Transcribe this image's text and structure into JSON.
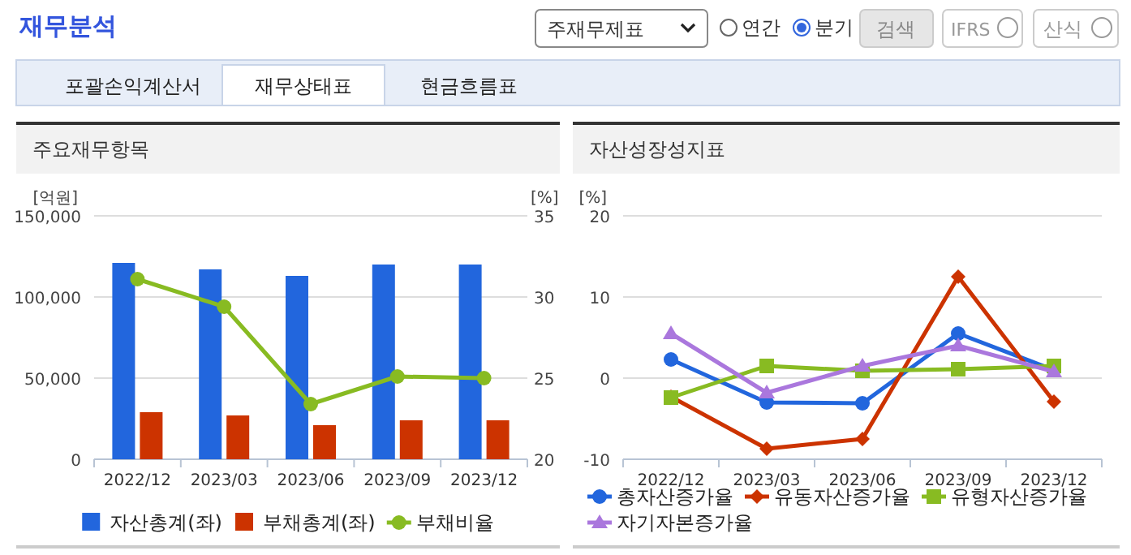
{
  "chart_data": [
    {
      "type": "bar",
      "title": "주요재무항목",
      "ylabel": "[억원]",
      "y2label": "[%]",
      "annotations": [
        "재무분석",
        "주재무제표",
        "연간",
        "분기",
        "검색",
        "IFRS",
        "산식",
        "포괄손익계산서",
        "재무상태표",
        "현금흐름표"
      ],
      "categories": [
        "2022/12",
        "2023/03",
        "2023/06",
        "2023/09",
        "2023/12"
      ],
      "series": [
        {
          "name": "자산총계(좌)",
          "color": "#2266dd",
          "values": [
            121000,
            117000,
            113000,
            120000,
            120000
          ]
        },
        {
          "name": "부채총계(좌)",
          "color": "#cc3300",
          "values": [
            29000,
            27000,
            21000,
            24000,
            24000
          ]
        },
        {
          "name": "부채비율",
          "type": "line",
          "axis": "y2",
          "marker": "circle",
          "color": "#88bb22",
          "values": [
            31.1,
            29.4,
            23.4,
            25.1,
            25.0
          ]
        }
      ],
      "ylim": [
        0,
        150000
      ],
      "yticks": [
        0,
        {
          "value": 50000,
          "label": "50,000"
        },
        {
          "value": 100000,
          "label": "100,000"
        },
        {
          "value": 150000,
          "label": "150,000"
        }
      ],
      "y2lim": [
        20,
        35
      ],
      "y2ticks": [
        20,
        25,
        30,
        35
      ],
      "grid": "y",
      "legend": "bottom"
    },
    {
      "type": "line",
      "title": "자산성장성지표",
      "ylabel": "[%]",
      "categories": [
        "2022/12",
        "2023/03",
        "2023/06",
        "2023/09",
        "2023/12"
      ],
      "series": [
        {
          "name": "총자산증가율",
          "marker": "circle",
          "color": "#2266dd",
          "values": [
            2.3,
            -3.0,
            -3.1,
            5.5,
            1.0
          ]
        },
        {
          "name": "유동자산증가율",
          "marker": "diamond",
          "color": "#cc3300",
          "values": [
            -2.3,
            -8.7,
            -7.5,
            12.5,
            -2.9
          ]
        },
        {
          "name": "유형자산증가율",
          "marker": "square",
          "color": "#88bb22",
          "values": [
            -2.4,
            1.5,
            0.9,
            1.1,
            1.5
          ]
        },
        {
          "name": "자기자본증가율",
          "marker": "triangle",
          "color": "#aa77dd",
          "values": [
            5.5,
            -1.8,
            1.5,
            4.0,
            0.8
          ]
        }
      ],
      "ylim": [
        -10,
        20
      ],
      "yticks": [
        -10,
        0,
        10,
        20
      ],
      "grid": "y",
      "legend": "bottom"
    }
  ]
}
